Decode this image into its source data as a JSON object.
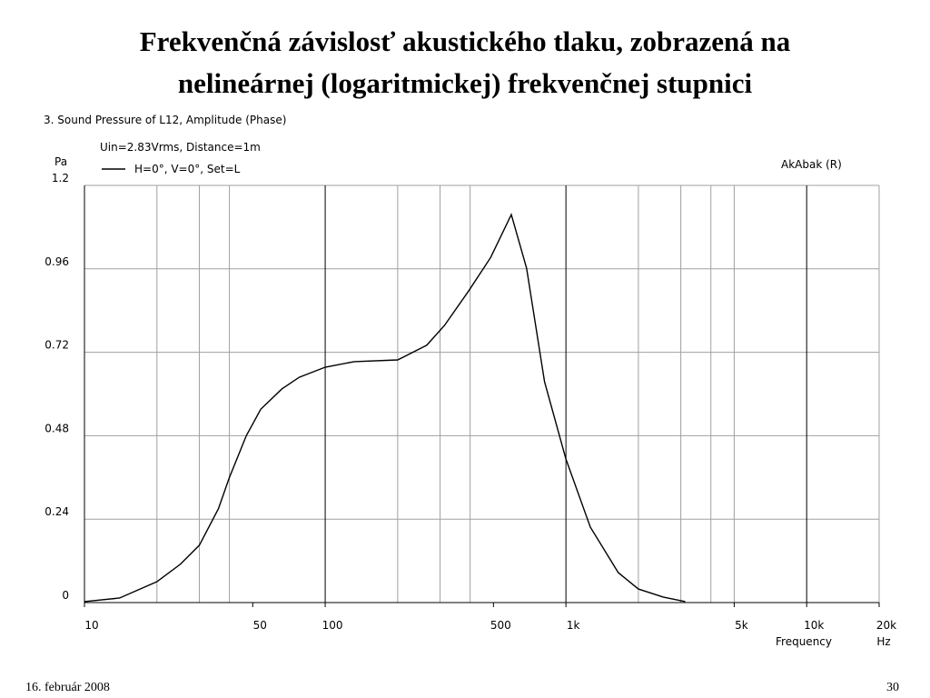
{
  "slide": {
    "title": [
      "Frekvenčná závislosť akustického tlaku, zobrazená na",
      "nelineárnej  (logaritmickej) frekvenčnej stupnici"
    ],
    "date": "16. február 2008",
    "page_number": "30"
  },
  "chart_data": {
    "type": "line",
    "title": "3. Sound Pressure of L12, Amplitude (Phase)",
    "subtitle": "Uin=2.83Vrms, Distance=1m",
    "annotation": "AkAbak (R)",
    "ylabel": "Pa",
    "xlabel": "Frequency",
    "xunit": "Hz",
    "xscale": "log",
    "grid": true,
    "x": [
      10,
      14,
      20,
      25,
      30,
      36,
      40,
      47,
      54,
      66,
      78,
      100,
      132,
      200,
      264,
      313,
      394,
      487,
      593,
      686,
      815,
      1000,
      1263,
      1650,
      2000,
      2535,
      3130
    ],
    "series": [
      {
        "name": "H=0°, V=0°, Set=L",
        "color": "#000000",
        "values": [
          0.003,
          0.013,
          0.06,
          0.11,
          0.165,
          0.27,
          0.36,
          0.48,
          0.556,
          0.614,
          0.648,
          0.677,
          0.693,
          0.698,
          0.74,
          0.797,
          0.896,
          0.993,
          1.116,
          0.962,
          0.635,
          0.413,
          0.217,
          0.086,
          0.039,
          0.016,
          0.003
        ]
      }
    ],
    "xlim": [
      10,
      20000
    ],
    "ylim": [
      0,
      1.2
    ],
    "xticks": [
      10,
      50,
      100,
      500,
      {
        "value": 1000,
        "label": "1k"
      },
      {
        "value": 5000,
        "label": "5k"
      },
      {
        "value": 10000,
        "label": "10k"
      },
      {
        "value": 20000,
        "label": "20k"
      }
    ],
    "xgrid": [
      20,
      30,
      40,
      100,
      200,
      300,
      400,
      1000,
      2000,
      3000,
      4000,
      5000,
      10000,
      20000
    ],
    "yticks": [
      0,
      0.24,
      0.48,
      0.72,
      0.96,
      1.2
    ]
  }
}
